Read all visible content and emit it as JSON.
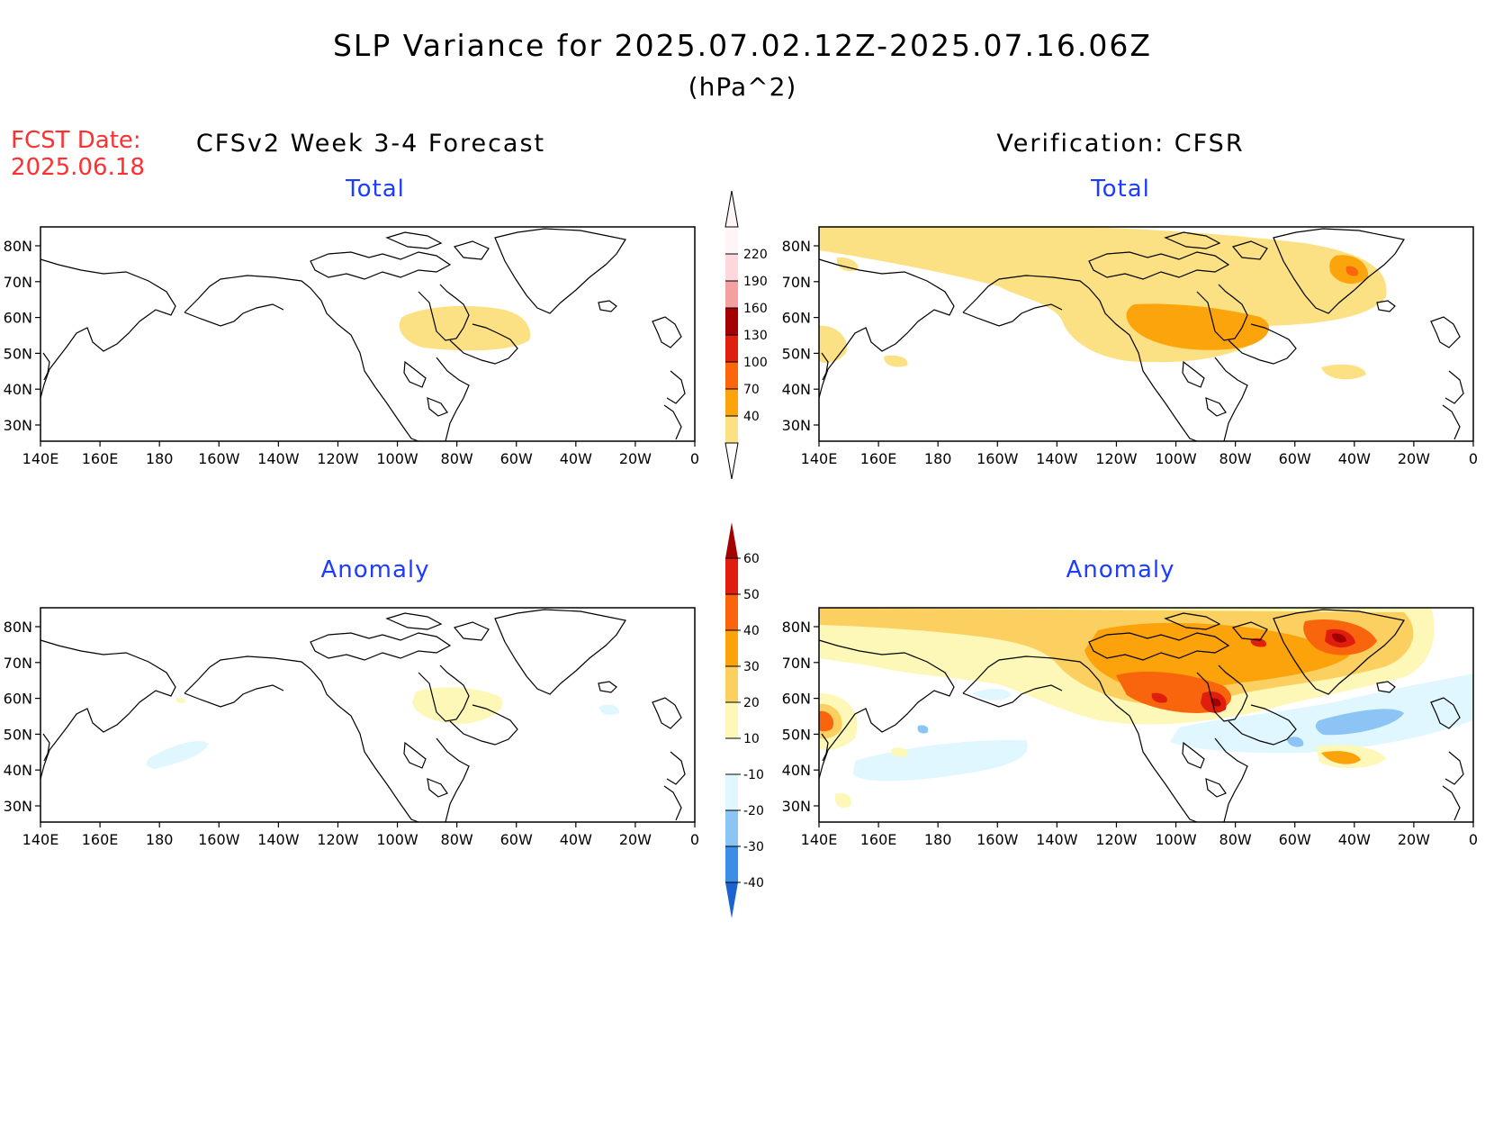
{
  "title": "SLP Variance for 2025.07.02.12Z-2025.07.16.06Z",
  "units": "(hPa^2)",
  "fcst_label": "FCST Date:",
  "fcst_date": "2025.06.18",
  "left_header": "CFSv2 Week 3-4 Forecast",
  "right_header": "Verification: CFSR",
  "panels": [
    {
      "id": "fcst-total",
      "subtitle": "Total"
    },
    {
      "id": "verif-total",
      "subtitle": "Total"
    },
    {
      "id": "fcst-anomaly",
      "subtitle": "Anomaly"
    },
    {
      "id": "verif-anomaly",
      "subtitle": "Anomaly"
    }
  ],
  "lon_ticks": [
    "140E",
    "160E",
    "180",
    "160W",
    "140W",
    "120W",
    "100W",
    "80W",
    "60W",
    "40W",
    "20W",
    "0"
  ],
  "lat_ticks": [
    "80N",
    "70N",
    "60N",
    "50N",
    "40N",
    "30N"
  ],
  "colorbars": {
    "total": {
      "levels": [
        "40",
        "70",
        "100",
        "130",
        "160",
        "190",
        "220"
      ],
      "colors": [
        "#fbe183",
        "#fca40c",
        "#f9660c",
        "#e0200f",
        "#a50000",
        "#f4a0a0",
        "#fcd8dc",
        "#fff5f6"
      ]
    },
    "anomaly": {
      "levels": [
        "-40",
        "-30",
        "-20",
        "-10",
        "10",
        "20",
        "30",
        "40",
        "50",
        "60"
      ],
      "colors": [
        "#1a63d0",
        "#3b8ee8",
        "#8cc4f5",
        "#e0f7ff",
        "#ffffff",
        "#fdf8b8",
        "#fbd060",
        "#fca20a",
        "#f8650c",
        "#e01e0e",
        "#a30000"
      ]
    }
  },
  "colors": {
    "title_text": "#000000",
    "fcst_date_text": "#ff3030",
    "subtitle_text": "#1e3cff"
  }
}
